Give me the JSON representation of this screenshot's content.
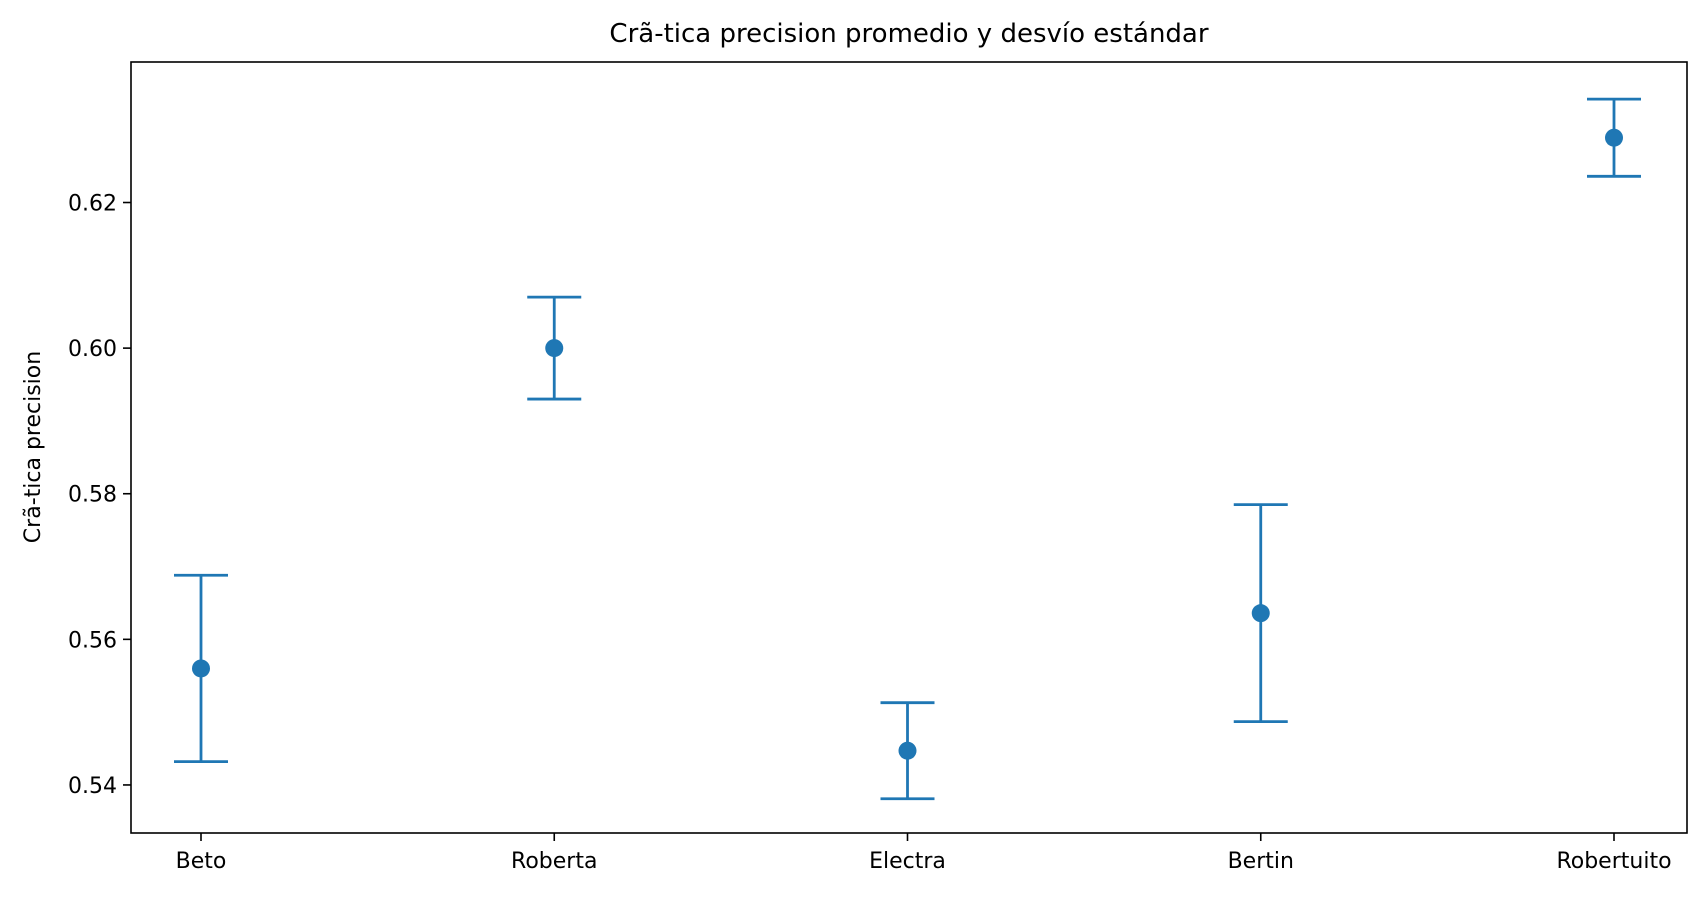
{
  "chart_data": {
    "type": "scatter",
    "title": "Crã-tica precision promedio y desvío estándar",
    "xlabel": "",
    "ylabel": "Crã-tica precision",
    "categories": [
      "Beto",
      "Roberta",
      "Electra",
      "Bertin",
      "Robertuito"
    ],
    "series": [
      {
        "values": [
          0.556,
          0.6,
          0.5447,
          0.5636,
          0.6289
        ],
        "error": [
          0.0128,
          0.007,
          0.0066,
          0.0149,
          0.0053
        ]
      }
    ],
    "ylim": [
      0.5334,
      0.6393
    ],
    "yticks": [
      0.54,
      0.56,
      0.58,
      0.6,
      0.62
    ],
    "ytick_labels": [
      "0.54",
      "0.56",
      "0.58",
      "0.60",
      "0.62"
    ],
    "grid": false,
    "legend": "none",
    "color": "#1f77b4"
  }
}
